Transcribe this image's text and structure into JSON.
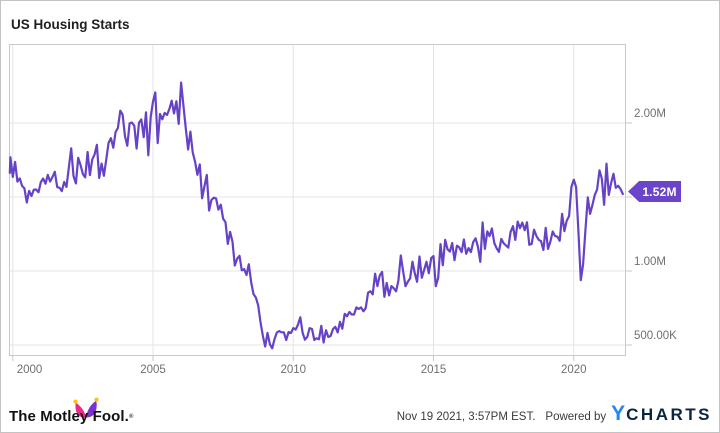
{
  "title": "US Housing Starts",
  "badge": {
    "label": "1.52M"
  },
  "colors": {
    "line": "#6642c6",
    "badge_bg": "#6a45c9",
    "grid": "#e4e4e4",
    "plot_border": "#c9c9c9",
    "axis_text": "#6f6f6f",
    "fool_pink": "#e62c8a",
    "fool_purple": "#7d30cf",
    "fool_yellow": "#ffc20e",
    "ycharts_blue": "#2187f0",
    "ycharts_dark": "#0b2540"
  },
  "footer": {
    "fool_text": "The Motley Fool.",
    "fool_reg": "®",
    "date_text": "Nov 19 2021, 3:57PM EST.",
    "powered_by": "Powered by",
    "ycharts_y": "Y",
    "ycharts_rest": "CHARTS"
  },
  "chart_data": {
    "type": "line",
    "title": "US Housing Starts",
    "series_name": "US Housing Starts",
    "frequency": "monthly",
    "unit": "housing units, SAAR, thousands",
    "start_month": "1999-11",
    "end_month": "2021-10",
    "last_value_label": "1.52M",
    "legend": "none",
    "grid": "on",
    "x_axis": {
      "tick_years": [
        2000,
        2005,
        2010,
        2015,
        2020
      ]
    },
    "y_axis": {
      "tick_labels": [
        {
          "text": "2.00M",
          "value_thousands": 2000
        },
        {
          "text": "1.00M",
          "value_thousands": 1000
        },
        {
          "text": "500.00K",
          "value_thousands": 500
        }
      ],
      "gridline_values_thousands": [
        2000,
        1500,
        1000,
        500
      ],
      "range_thousands": [
        425,
        2530
      ]
    },
    "values_thousands": [
      1663,
      1769,
      1636,
      1737,
      1604,
      1626,
      1575,
      1559,
      1463,
      1541,
      1507,
      1549,
      1551,
      1532,
      1600,
      1625,
      1590,
      1649,
      1605,
      1636,
      1670,
      1567,
      1562,
      1540,
      1602,
      1568,
      1698,
      1829,
      1642,
      1592,
      1764,
      1717,
      1655,
      1633,
      1804,
      1648,
      1753,
      1788,
      1853,
      1629,
      1726,
      1643,
      1751,
      1867,
      1897,
      1833,
      1939,
      1967,
      2083,
      2057,
      1911,
      1846,
      1998,
      2003,
      1981,
      1828,
      2002,
      2024,
      1905,
      2072,
      1782,
      2042,
      2144,
      2207,
      1864,
      2061,
      2025,
      2068,
      2054,
      2095,
      2151,
      2065,
      2147,
      1994,
      2273,
      2119,
      1969,
      1821,
      1942,
      1802,
      1737,
      1650,
      1720,
      1491,
      1570,
      1649,
      1409,
      1480,
      1495,
      1490,
      1415,
      1448,
      1354,
      1330,
      1183,
      1264,
      1197,
      1037,
      1084,
      1103,
      1005,
      1013,
      973,
      1046,
      923,
      844,
      820,
      767,
      655,
      560,
      490,
      582,
      505,
      478,
      540,
      585,
      594,
      586,
      585,
      534,
      588,
      581,
      614,
      604,
      636,
      687,
      583,
      536,
      555,
      614,
      608,
      534,
      545,
      539,
      630,
      517,
      600,
      554,
      561,
      608,
      623,
      585,
      657,
      610,
      711,
      694,
      723,
      706,
      706,
      754,
      744,
      754,
      728,
      749,
      854,
      863,
      842,
      982,
      898,
      969,
      994,
      826,
      919,
      835,
      898,
      883,
      863,
      936,
      1105,
      999,
      897,
      928,
      950,
      1063,
      984,
      927,
      1098,
      954,
      1009,
      1062,
      985,
      1087,
      1101,
      897,
      954,
      1182,
      1039,
      1211,
      1147,
      1131,
      1189,
      1073,
      1171,
      1160,
      1128,
      1213,
      1116,
      1155,
      1128,
      1195,
      1221,
      1164,
      1062,
      1328,
      1149,
      1268,
      1236,
      1288,
      1189,
      1154,
      1129,
      1217,
      1188,
      1172,
      1158,
      1265,
      1303,
      1210,
      1334,
      1290,
      1327,
      1276,
      1329,
      1177,
      1184,
      1279,
      1237,
      1211,
      1202,
      1142,
      1291,
      1149,
      1199,
      1267,
      1237,
      1232,
      1204,
      1386,
      1269,
      1340,
      1371,
      1568,
      1617,
      1567,
      1269,
      938,
      1046,
      1273,
      1497,
      1386,
      1448,
      1514,
      1551,
      1680,
      1625,
      1447,
      1725,
      1514,
      1594,
      1657,
      1562,
      1576,
      1555,
      1520
    ]
  }
}
